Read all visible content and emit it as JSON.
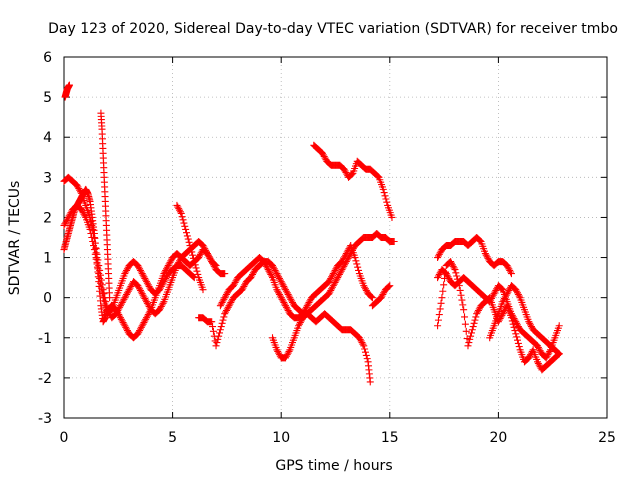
{
  "chart_data": {
    "type": "scatter",
    "title": "Day 123 of 2020, Sidereal Day-to-day VTEC variation (SDTVAR) for receiver tmbo",
    "xlabel": "GPS time / hours",
    "ylabel": "SDTVAR / TECUs",
    "xlim": [
      0,
      25
    ],
    "ylim": [
      -3,
      6
    ],
    "xticks": [
      "0",
      "5",
      "10",
      "15",
      "20",
      "25"
    ],
    "yticks": [
      "-3",
      "-2",
      "-1",
      "0",
      "1",
      "2",
      "3",
      "4",
      "5",
      "6"
    ],
    "grid": true,
    "marker": "+",
    "series_color": "#ff0000",
    "series": [
      {
        "name": "s1",
        "x": [
          0.0,
          0.1,
          0.2,
          0.3,
          0.4,
          0.5,
          0.6,
          0.7,
          0.8,
          0.9,
          1.0,
          1.1,
          1.2,
          1.3,
          1.4,
          1.5,
          1.6,
          1.7,
          1.8,
          1.9,
          2.0,
          2.2,
          2.4,
          2.6,
          2.8,
          3.0,
          3.2,
          3.4,
          3.6,
          3.8,
          4.0,
          4.2,
          4.4,
          4.6,
          4.8,
          5.0,
          5.2,
          5.4,
          5.6,
          5.8,
          6.0,
          6.2,
          6.4,
          6.6,
          6.8,
          7.0,
          7.2,
          7.4
        ],
        "y": [
          1.2,
          1.4,
          1.6,
          1.8,
          2.0,
          2.2,
          2.3,
          2.4,
          2.5,
          2.6,
          2.7,
          2.6,
          2.4,
          2.0,
          1.6,
          1.0,
          0.4,
          -0.2,
          -0.6,
          -0.5,
          -0.3,
          -0.2,
          -0.3,
          -0.5,
          -0.7,
          -0.9,
          -1.0,
          -0.9,
          -0.7,
          -0.5,
          -0.3,
          0.0,
          0.3,
          0.6,
          0.8,
          1.0,
          1.1,
          1.0,
          0.9,
          0.8,
          0.9,
          1.0,
          1.2,
          1.1,
          0.9,
          0.7,
          0.6,
          0.6
        ]
      },
      {
        "name": "s2",
        "x": [
          0.0,
          0.2,
          0.4,
          0.6,
          0.8,
          1.0,
          1.2,
          1.4,
          1.6,
          1.8,
          2.0,
          2.2,
          2.4,
          2.6,
          2.8,
          3.0,
          3.2,
          3.4,
          3.6,
          3.8,
          4.0,
          4.2,
          4.4,
          4.6,
          4.8,
          5.0,
          5.2,
          5.4,
          5.6,
          5.8,
          6.0,
          6.2,
          6.4,
          6.6,
          6.8,
          7.0
        ],
        "y": [
          2.9,
          3.0,
          2.9,
          2.8,
          2.6,
          2.3,
          2.0,
          1.5,
          0.8,
          0.2,
          -0.3,
          -0.5,
          -0.4,
          -0.2,
          0.0,
          0.2,
          0.4,
          0.3,
          0.1,
          -0.1,
          -0.3,
          -0.4,
          -0.3,
          -0.1,
          0.2,
          0.5,
          0.8,
          1.0,
          1.1,
          1.2,
          1.3,
          1.4,
          1.3,
          1.1,
          0.9,
          0.8
        ]
      },
      {
        "name": "s3",
        "x": [
          0.0,
          0.2,
          0.4,
          0.6,
          0.8,
          1.0,
          1.2,
          1.4,
          1.6,
          1.8,
          2.0,
          2.2,
          2.4,
          2.6,
          2.8,
          3.0,
          3.2,
          3.4,
          3.6,
          3.8,
          4.0,
          4.2,
          4.4,
          4.6,
          4.8,
          5.0,
          5.2,
          5.4,
          5.6,
          5.8,
          6.0
        ],
        "y": [
          1.8,
          2.0,
          2.2,
          2.3,
          2.2,
          2.0,
          1.7,
          1.2,
          0.6,
          0.0,
          -0.4,
          -0.3,
          0.0,
          0.3,
          0.6,
          0.8,
          0.9,
          0.8,
          0.6,
          0.4,
          0.2,
          0.1,
          0.2,
          0.4,
          0.6,
          0.7,
          0.8,
          0.8,
          0.7,
          0.6,
          0.5
        ]
      },
      {
        "name": "s4",
        "x": [
          0.05,
          0.1,
          0.15,
          0.2,
          0.25
        ],
        "y": [
          5.0,
          5.1,
          5.2,
          5.25,
          5.3
        ]
      },
      {
        "name": "s5",
        "x": [
          1.7,
          1.75,
          1.8,
          1.85,
          1.9,
          1.95,
          2.0,
          2.05,
          2.1
        ],
        "y": [
          4.6,
          4.2,
          3.6,
          3.0,
          2.4,
          1.8,
          1.2,
          0.6,
          0.0
        ]
      },
      {
        "name": "s6",
        "x": [
          5.2,
          5.4,
          5.6,
          5.8,
          6.0,
          6.2,
          6.4
        ],
        "y": [
          2.3,
          2.1,
          1.7,
          1.3,
          0.9,
          0.5,
          0.2
        ]
      },
      {
        "name": "s7",
        "x": [
          6.2,
          6.4,
          6.6,
          6.8,
          7.0,
          7.2,
          7.4,
          7.6,
          7.8,
          8.0,
          8.2,
          8.4,
          8.6,
          8.8,
          9.0,
          9.2,
          9.4,
          9.6,
          9.8,
          10.0,
          10.2,
          10.4,
          10.6,
          10.8,
          11.0,
          11.2,
          11.4,
          11.6,
          11.8,
          12.0,
          12.2,
          12.4,
          12.6,
          12.8,
          13.0,
          13.2,
          13.4,
          13.6,
          13.8,
          14.0,
          14.2,
          14.4,
          14.6,
          14.8,
          15.0,
          15.2
        ],
        "y": [
          -0.5,
          -0.5,
          -0.6,
          -0.6,
          -1.2,
          -0.8,
          -0.4,
          -0.2,
          0.0,
          0.1,
          0.2,
          0.4,
          0.5,
          0.7,
          0.8,
          0.9,
          0.9,
          0.8,
          0.6,
          0.4,
          0.2,
          0.0,
          -0.2,
          -0.3,
          -0.4,
          -0.4,
          -0.3,
          -0.2,
          -0.1,
          0.0,
          0.1,
          0.3,
          0.5,
          0.7,
          0.9,
          1.1,
          1.3,
          1.4,
          1.5,
          1.5,
          1.5,
          1.6,
          1.5,
          1.5,
          1.4,
          1.4
        ]
      },
      {
        "name": "s8",
        "x": [
          7.2,
          7.4,
          7.6,
          7.8,
          8.0,
          8.2,
          8.4,
          8.6,
          8.8,
          9.0,
          9.2,
          9.4,
          9.6,
          9.8,
          10.0,
          10.2,
          10.4,
          10.6,
          10.8,
          11.0,
          11.2,
          11.4,
          11.6,
          11.8,
          12.0,
          12.2,
          12.4,
          12.6,
          12.8,
          13.0,
          13.2,
          13.4,
          13.6,
          13.8,
          14.0,
          14.2
        ],
        "y": [
          -0.2,
          0.0,
          0.2,
          0.3,
          0.5,
          0.6,
          0.7,
          0.8,
          0.9,
          1.0,
          0.9,
          0.7,
          0.5,
          0.2,
          0.0,
          -0.2,
          -0.4,
          -0.5,
          -0.5,
          -0.4,
          -0.2,
          0.0,
          0.1,
          0.2,
          0.3,
          0.4,
          0.6,
          0.8,
          0.9,
          1.1,
          1.3,
          1.0,
          0.6,
          0.3,
          0.1,
          0.0
        ]
      },
      {
        "name": "s9",
        "x": [
          9.6,
          9.8,
          10.0,
          10.2,
          10.4,
          10.6,
          10.8,
          11.0,
          11.2,
          11.4,
          11.6,
          11.8,
          12.0,
          12.2,
          12.4,
          12.6,
          12.8,
          13.0,
          13.2,
          13.4,
          13.6,
          13.8,
          14.0,
          14.1
        ],
        "y": [
          -1.0,
          -1.3,
          -1.5,
          -1.5,
          -1.3,
          -1.0,
          -0.7,
          -0.5,
          -0.4,
          -0.5,
          -0.6,
          -0.5,
          -0.4,
          -0.5,
          -0.6,
          -0.7,
          -0.8,
          -0.8,
          -0.8,
          -0.9,
          -1.0,
          -1.2,
          -1.6,
          -2.1
        ]
      },
      {
        "name": "s10",
        "x": [
          11.5,
          11.7,
          11.9,
          12.1,
          12.3,
          12.5,
          12.7,
          12.9,
          13.1,
          13.3,
          13.5,
          13.7,
          13.9,
          14.1,
          14.3,
          14.5,
          14.7,
          14.9,
          15.1
        ],
        "y": [
          3.8,
          3.7,
          3.6,
          3.4,
          3.3,
          3.3,
          3.3,
          3.2,
          3.0,
          3.1,
          3.4,
          3.3,
          3.2,
          3.2,
          3.1,
          3.0,
          2.7,
          2.3,
          2.0
        ]
      },
      {
        "name": "s11",
        "x": [
          14.2,
          14.4,
          14.6,
          14.8,
          15.0
        ],
        "y": [
          -0.2,
          -0.1,
          0.0,
          0.2,
          0.3
        ]
      },
      {
        "name": "s12",
        "x": [
          17.2,
          17.4,
          17.6,
          17.8,
          18.0,
          18.2,
          18.4,
          18.6,
          18.8,
          19.0,
          19.2,
          19.4,
          19.6,
          19.8,
          20.0,
          20.2,
          20.4,
          20.6
        ],
        "y": [
          1.0,
          1.2,
          1.3,
          1.3,
          1.4,
          1.4,
          1.4,
          1.3,
          1.4,
          1.5,
          1.4,
          1.1,
          0.9,
          0.8,
          0.9,
          0.9,
          0.8,
          0.6
        ]
      },
      {
        "name": "s13",
        "x": [
          17.2,
          17.4,
          17.6,
          17.8,
          18.0,
          18.2,
          18.4,
          18.6,
          18.8,
          19.0,
          19.2,
          19.4,
          19.6,
          19.8,
          20.0,
          20.2,
          20.4,
          20.6,
          20.8,
          21.0,
          21.2,
          21.4,
          21.6,
          21.8,
          22.0,
          22.2,
          22.4,
          22.6,
          22.8
        ],
        "y": [
          0.5,
          0.7,
          0.6,
          0.4,
          0.3,
          0.4,
          0.5,
          0.4,
          0.3,
          0.2,
          0.1,
          0.0,
          -0.1,
          0.1,
          0.3,
          0.2,
          -0.1,
          -0.4,
          -0.6,
          -0.8,
          -0.9,
          -1.0,
          -1.1,
          -1.2,
          -1.4,
          -1.5,
          -1.3,
          -1.0,
          -0.7
        ]
      },
      {
        "name": "s14",
        "x": [
          17.2,
          17.4,
          17.6,
          17.8,
          18.0,
          18.2,
          18.4,
          18.6,
          18.8,
          19.0,
          19.2,
          19.4,
          19.6,
          19.8,
          20.0,
          20.2,
          20.4,
          20.6,
          20.8,
          21.0,
          21.2,
          21.4,
          21.6,
          21.8,
          22.0,
          22.2,
          22.4,
          22.6,
          22.8
        ],
        "y": [
          -0.7,
          0.0,
          0.8,
          0.9,
          0.7,
          0.3,
          -0.3,
          -1.2,
          -0.8,
          -0.4,
          -0.2,
          -0.1,
          0.0,
          -0.3,
          -0.6,
          -0.4,
          -0.2,
          -0.5,
          -0.9,
          -1.3,
          -1.6,
          -1.5,
          -1.3,
          -1.6,
          -1.8,
          -1.7,
          -1.6,
          -1.5,
          -1.4
        ]
      },
      {
        "name": "s15",
        "x": [
          19.6,
          19.8,
          20.0,
          20.2,
          20.4,
          20.6,
          20.8,
          21.0,
          21.2,
          21.4,
          21.6,
          21.8,
          22.0,
          22.2,
          22.4,
          22.6,
          22.8
        ],
        "y": [
          -1.0,
          -0.7,
          -0.4,
          -0.1,
          0.1,
          0.3,
          0.2,
          0.0,
          -0.3,
          -0.6,
          -0.8,
          -0.9,
          -1.0,
          -1.1,
          -1.2,
          -1.3,
          -1.4
        ]
      }
    ]
  }
}
